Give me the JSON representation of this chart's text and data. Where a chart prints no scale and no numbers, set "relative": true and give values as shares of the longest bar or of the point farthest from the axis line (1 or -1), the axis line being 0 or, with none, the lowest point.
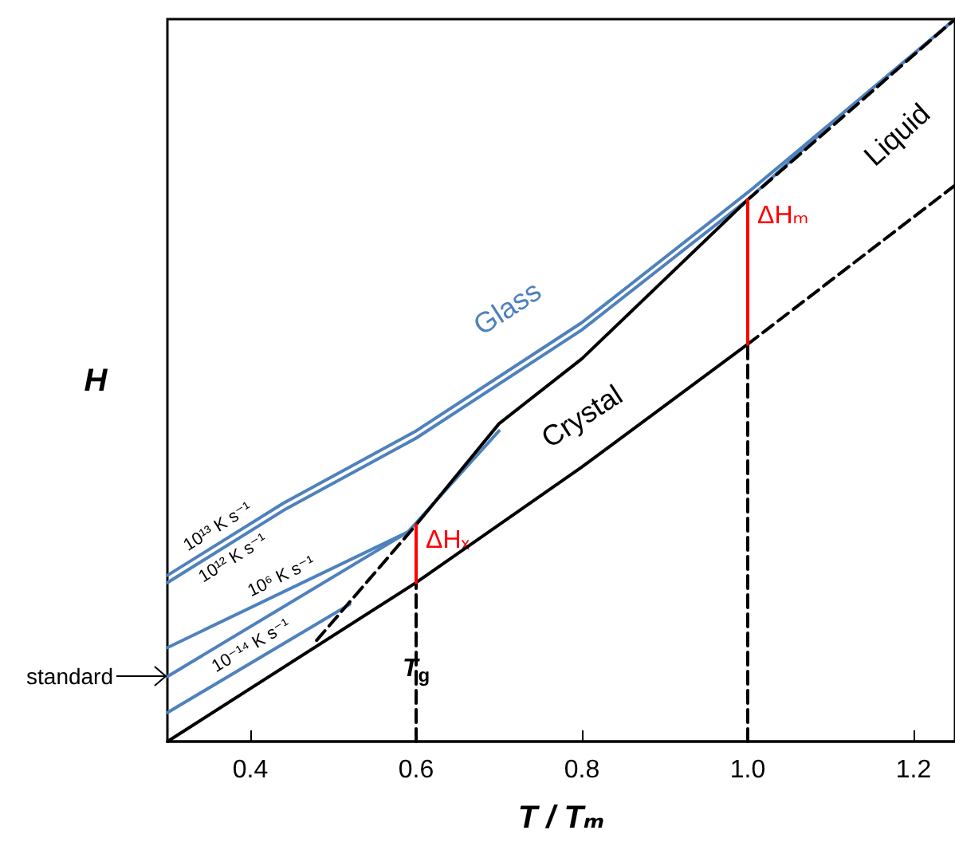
{
  "chart_data": {
    "type": "line",
    "relative": true,
    "xlabel": "T / Tₘ",
    "ylabel": "H",
    "xlim": [
      0.3,
      1.25
    ],
    "xticks": [
      0.4,
      0.6,
      0.8,
      {
        "value": 1.0,
        "label": "1.0"
      },
      1.2
    ],
    "grid": false,
    "legend": false,
    "marker": "none",
    "series": [
      {
        "name": "10¹³ K s⁻¹",
        "color": "#4f81bd",
        "x": [
          0.3,
          0.44,
          0.6,
          0.8,
          1.0,
          1.115,
          1.25
        ],
        "values": [
          0.23,
          0.33,
          0.43,
          0.58,
          0.76,
          0.87,
          1.0
        ]
      },
      {
        "name": "10¹² K s⁻¹",
        "color": "#4f81bd",
        "x": [
          0.3,
          0.44,
          0.6,
          0.8,
          1.0,
          1.115,
          1.25
        ],
        "values": [
          0.22,
          0.32,
          0.42,
          0.57,
          0.75,
          0.87,
          1.0
        ]
      },
      {
        "name": "10⁶ K s⁻¹",
        "color": "#4f81bd",
        "x": [
          0.3,
          0.59,
          0.7
        ],
        "values": [
          0.13,
          0.29,
          0.43
        ]
      },
      {
        "color": "#4f81bd",
        "x": [
          0.3,
          0.59
        ],
        "values": [
          0.09,
          0.29
        ]
      },
      {
        "name": "10⁻¹⁴ K s⁻¹",
        "color": "#4f81bd",
        "x": [
          0.3,
          0.52
        ],
        "values": [
          0.04,
          0.19
        ]
      },
      {
        "color": "#000000",
        "x": [
          0.3,
          0.6,
          0.8,
          1.0
        ],
        "values": [
          0,
          0.22,
          0.38,
          0.55
        ]
      },
      {
        "color": "#000000",
        "line_style": "dashed",
        "x": [
          1.0,
          1.25
        ],
        "values": [
          0.55,
          0.77
        ]
      },
      {
        "color": "#000000",
        "x": [
          0.6,
          0.7,
          0.8,
          1.0
        ],
        "values": [
          0.3,
          0.44,
          0.53,
          0.75
        ]
      },
      {
        "color": "#000000",
        "line_style": "dashed",
        "x": [
          1.0,
          1.25
        ],
        "values": [
          0.75,
          1.0
        ]
      },
      {
        "color": "#000000",
        "line_style": "dashed",
        "x": [
          0.48,
          0.6
        ],
        "values": [
          0.14,
          0.3
        ]
      },
      {
        "color": "#000000",
        "line_style": "dashed",
        "x": [
          0.6,
          0.6
        ],
        "values": [
          0,
          0.22
        ]
      },
      {
        "color": "#000000",
        "line_style": "dashed",
        "x": [
          1.0,
          1.0
        ],
        "values": [
          0,
          0.55
        ]
      },
      {
        "name": "ΔHₓ",
        "color": "#ff0000",
        "x": [
          0.6,
          0.6
        ],
        "values": [
          0.22,
          0.3
        ]
      },
      {
        "name": "ΔHₘ",
        "color": "#ff0000",
        "x": [
          1.0,
          1.0
        ],
        "values": [
          0.55,
          0.75
        ]
      }
    ],
    "annotations": [
      "Glass",
      "Liquid",
      "Crystal",
      {
        "text": "T$_{g}$",
        "x": 0.6,
        "y": 0.1
      },
      {
        "text": "standard",
        "x": 0.3,
        "y": 0.09
      }
    ]
  }
}
